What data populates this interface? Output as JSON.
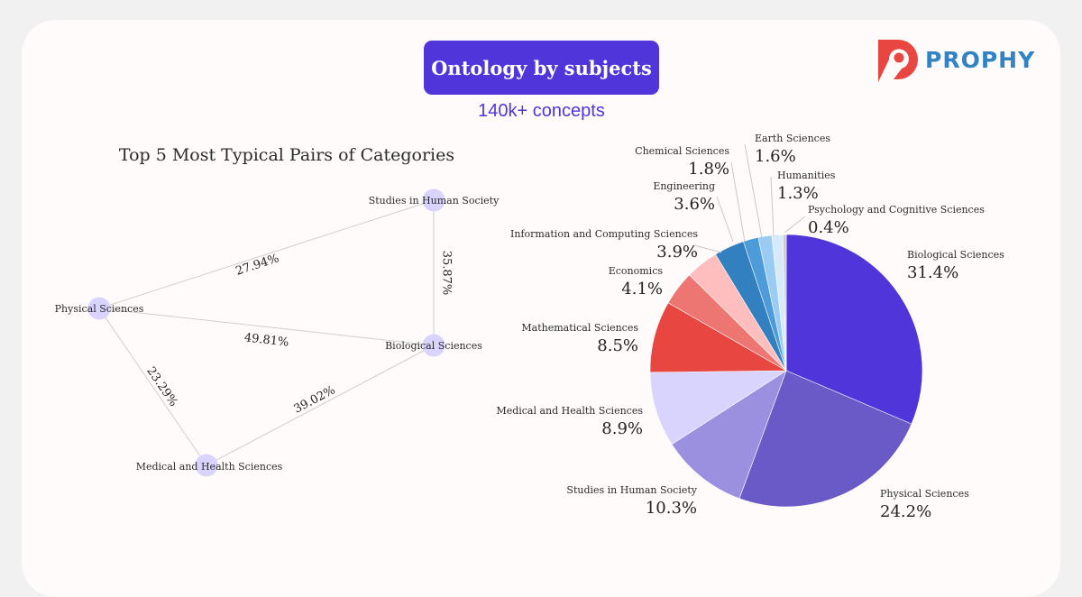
{
  "header": {
    "title": "Ontology by subjects",
    "subtitle": "140k+ concepts",
    "logo_text": "PROPHY",
    "logo_icon": "prophy-p-logo-icon"
  },
  "colors": {
    "accent": "#4f35da",
    "brand_blue": "#3283c4",
    "brand_red": "#e84640",
    "background": "#fffbfa",
    "node_fill": "#d8d4fd",
    "edge": "#cccccc"
  },
  "chart_data": [
    {
      "type": "network",
      "title": "Top 5 Most Typical Pairs of Categories",
      "nodes": [
        {
          "id": "studies",
          "label": "Studies in Human Society"
        },
        {
          "id": "physical",
          "label": "Physical Sciences"
        },
        {
          "id": "biological",
          "label": "Biological Sciences"
        },
        {
          "id": "medical",
          "label": "Medical and Health Sciences"
        }
      ],
      "edges": [
        {
          "source": "physical",
          "target": "studies",
          "value": 27.94,
          "label": "27.94%"
        },
        {
          "source": "studies",
          "target": "biological",
          "value": 35.87,
          "label": "35.87%"
        },
        {
          "source": "physical",
          "target": "biological",
          "value": 49.81,
          "label": "49.81%"
        },
        {
          "source": "physical",
          "target": "medical",
          "value": 23.29,
          "label": "23.29%"
        },
        {
          "source": "medical",
          "target": "biological",
          "value": 39.02,
          "label": "39.02%"
        }
      ]
    },
    {
      "type": "pie",
      "title": "",
      "start": "top",
      "direction": "clockwise",
      "slices": [
        {
          "label": "Biological Sciences",
          "value": 31.4,
          "display": "31.4%",
          "color": "#4f35da"
        },
        {
          "label": "Physical Sciences",
          "value": 24.2,
          "display": "24.2%",
          "color": "#6a5ac8"
        },
        {
          "label": "Studies in Human Society",
          "value": 10.3,
          "display": "10.3%",
          "color": "#9b8fe0"
        },
        {
          "label": "Medical and Health Sciences",
          "value": 8.9,
          "display": "8.9%",
          "color": "#d8d4fd"
        },
        {
          "label": "Mathematical Sciences",
          "value": 8.5,
          "display": "8.5%",
          "color": "#e84640"
        },
        {
          "label": "Economics",
          "value": 4.1,
          "display": "4.1%",
          "color": "#ee7672"
        },
        {
          "label": "Information and Computing Sciences",
          "value": 3.9,
          "display": "3.9%",
          "color": "#ffbebe"
        },
        {
          "label": "Engineering",
          "value": 3.6,
          "display": "3.6%",
          "color": "#3280bf"
        },
        {
          "label": "Chemical Sciences",
          "value": 1.8,
          "display": "1.8%",
          "color": "#4e9bd9"
        },
        {
          "label": "Earth Sciences",
          "value": 1.6,
          "display": "1.6%",
          "color": "#9acbf3"
        },
        {
          "label": "Humanities",
          "value": 1.3,
          "display": "1.3%",
          "color": "#d6eafb"
        },
        {
          "label": "Psychology and Cognitive Sciences",
          "value": 0.4,
          "display": "0.4%",
          "color": "#cccccc"
        }
      ]
    }
  ]
}
